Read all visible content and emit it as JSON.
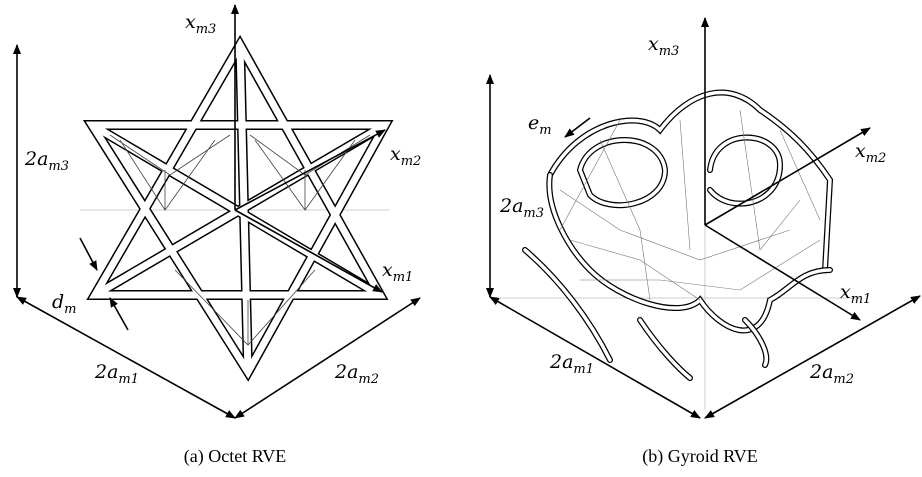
{
  "panels": [
    {
      "caption": "(a) Octet RVE",
      "labels": [
        {
          "base": "x",
          "sub": "m3"
        },
        {
          "base": "x",
          "sub": "m2"
        },
        {
          "base": "x",
          "sub": "m1"
        },
        {
          "base": "2a",
          "sub": "m3"
        },
        {
          "base": "d",
          "sub": "m"
        },
        {
          "base": "2a",
          "sub": "m1"
        },
        {
          "base": "2a",
          "sub": "m2"
        }
      ]
    },
    {
      "caption": "(b) Gyroid RVE",
      "labels": [
        {
          "base": "x",
          "sub": "m3"
        },
        {
          "base": "e",
          "sub": "m"
        },
        {
          "base": "x",
          "sub": "m2"
        },
        {
          "base": "2a",
          "sub": "m3"
        },
        {
          "base": "x",
          "sub": "m1"
        },
        {
          "base": "2a",
          "sub": "m1"
        },
        {
          "base": "2a",
          "sub": "m2"
        }
      ]
    }
  ]
}
